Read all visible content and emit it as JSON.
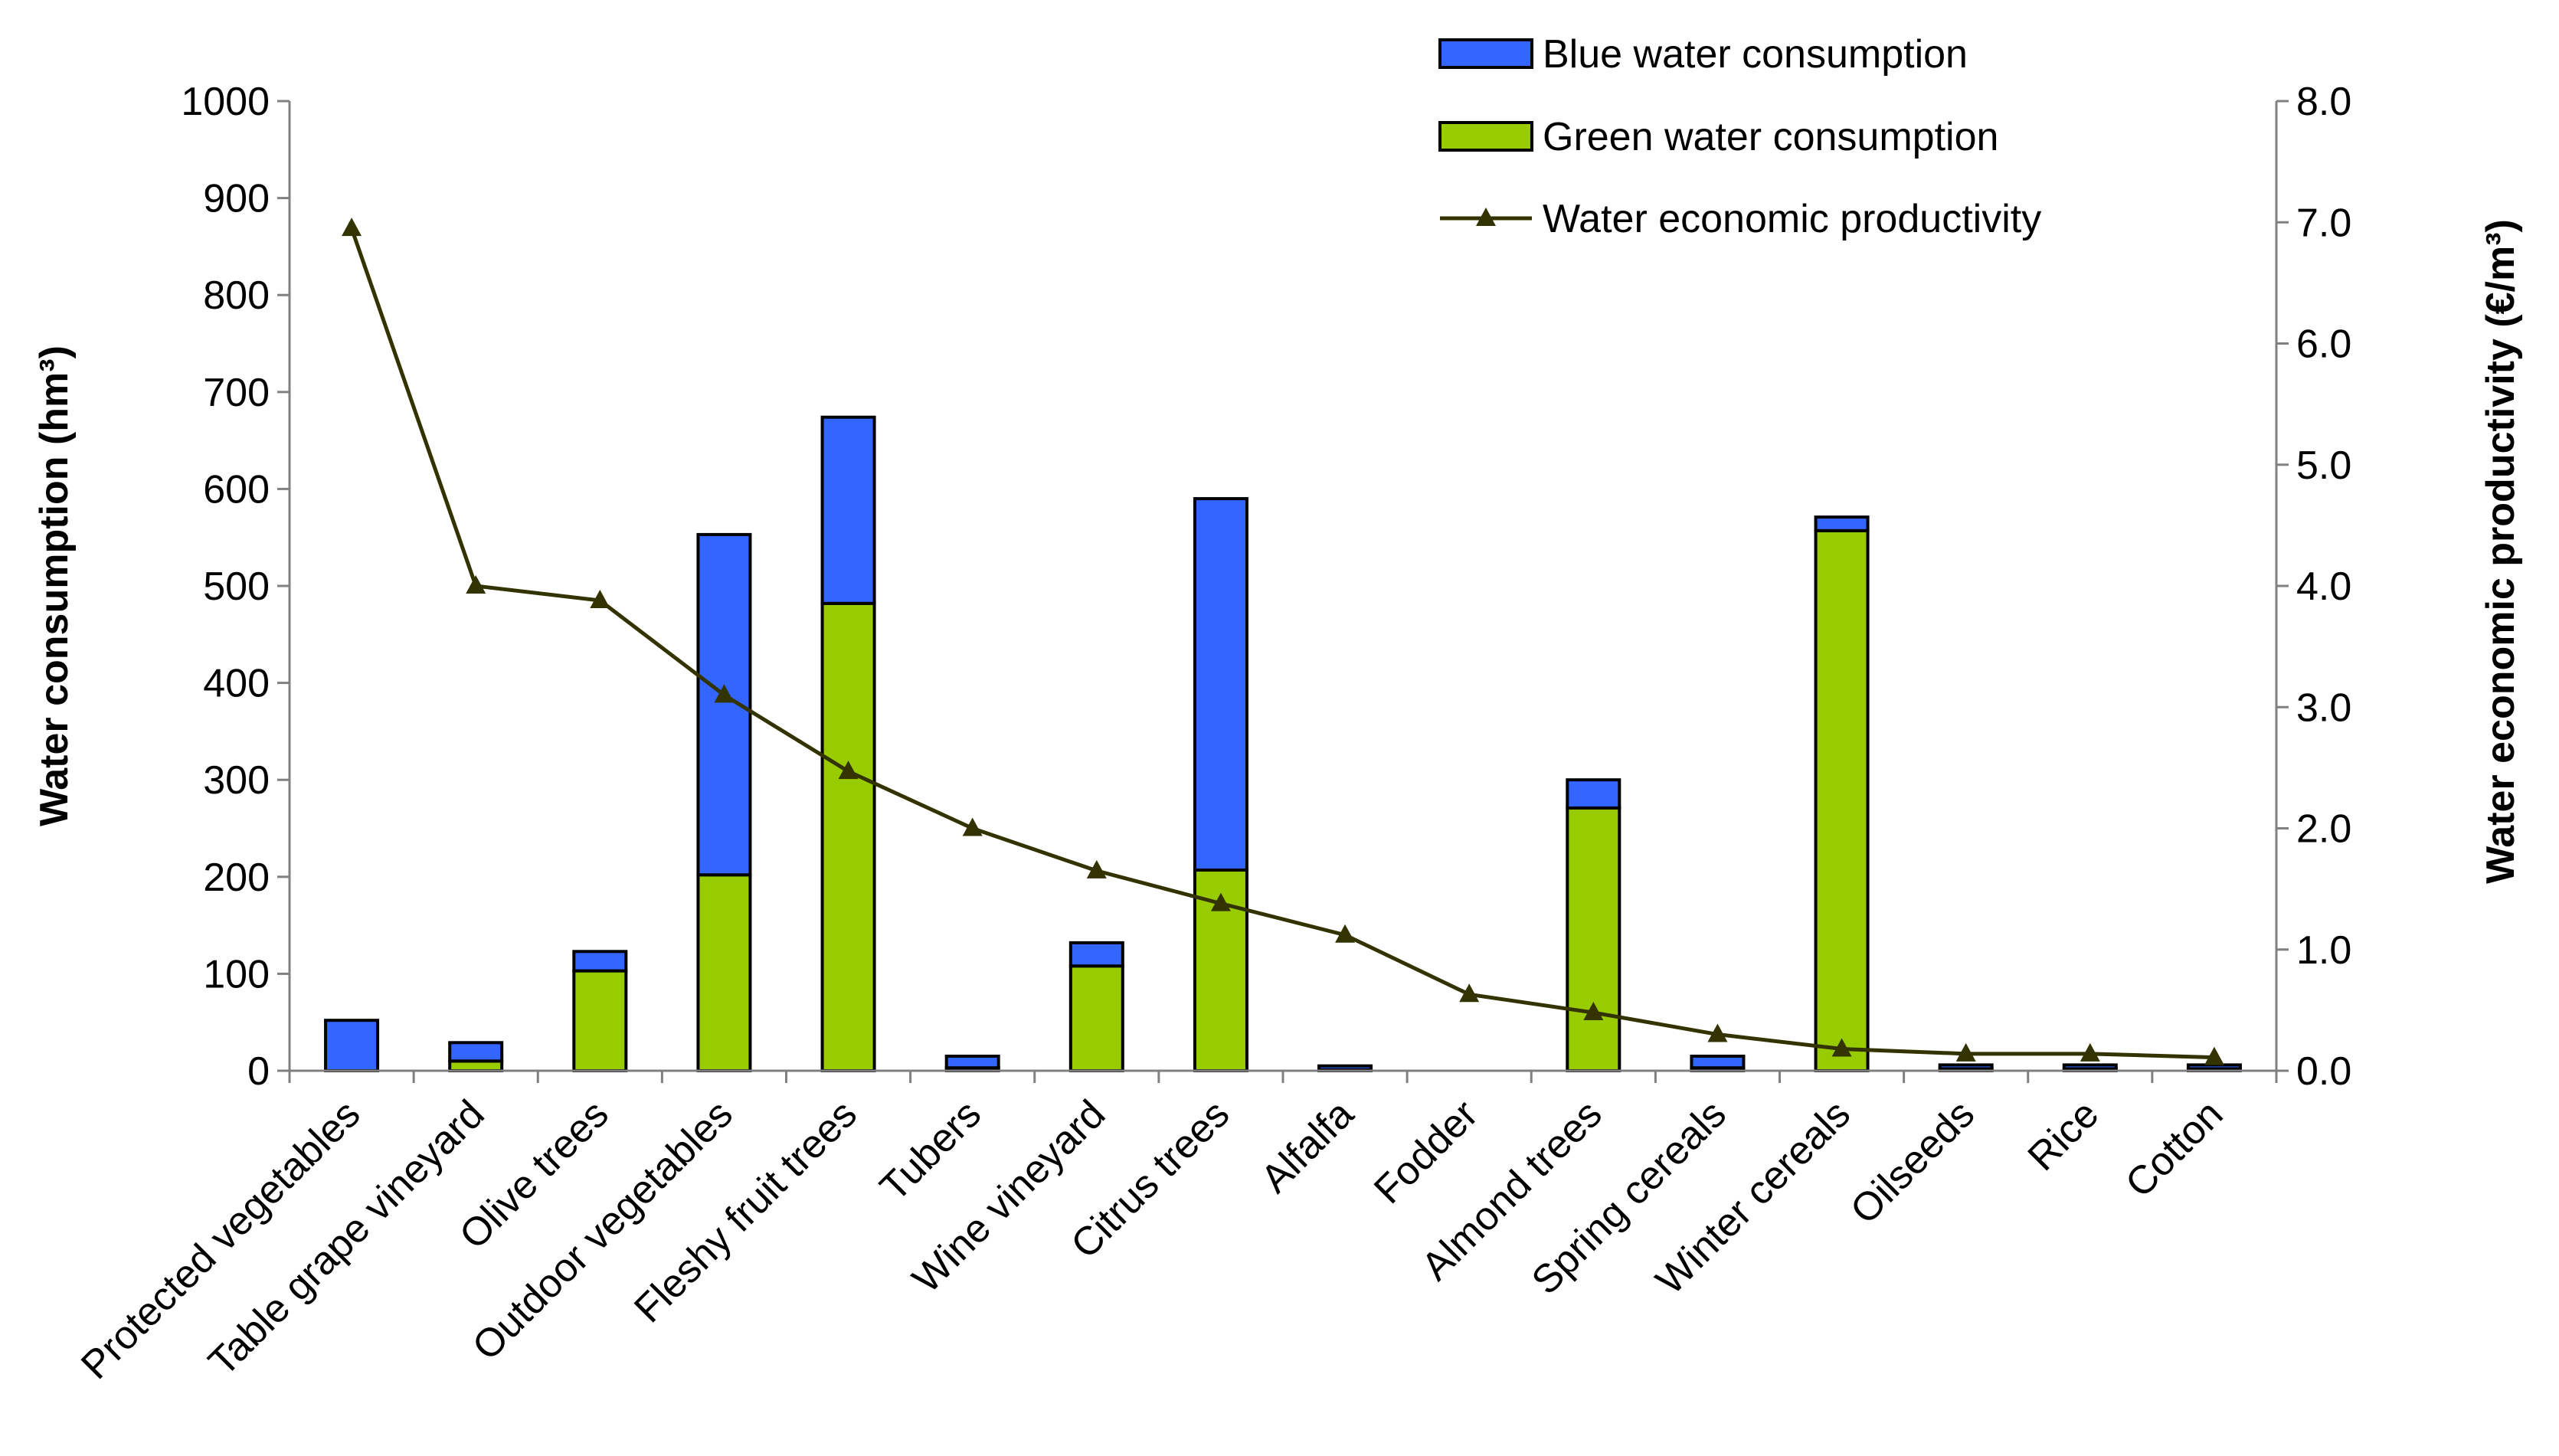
{
  "chart_data": {
    "type": "bar",
    "stacked": true,
    "categories": [
      "Protected vegetables",
      "Table grape vineyard",
      "Olive trees",
      "Outdoor vegetables",
      "Fleshy fruit trees",
      "Tubers",
      "Wine vineyard",
      "Citrus trees",
      "Alfalfa",
      "Fodder",
      "Almond trees",
      "Spring cereals",
      "Winter cereals",
      "Oilseeds",
      "Rice",
      "Cotton"
    ],
    "series": [
      {
        "name": "Green water consumption",
        "axis": "left",
        "color": "#99cc00",
        "values": [
          0,
          10,
          103,
          202,
          482,
          3,
          108,
          207,
          1,
          0,
          271,
          3,
          557,
          2,
          2,
          2
        ]
      },
      {
        "name": "Blue water consumption",
        "axis": "left",
        "color": "#3366ff",
        "values": [
          52,
          19,
          20,
          351,
          192,
          12,
          24,
          383,
          4,
          0,
          29,
          12,
          14,
          4,
          4,
          4
        ]
      },
      {
        "name": "Water economic productivity",
        "axis": "right",
        "type": "line",
        "color": "#333300",
        "values": [
          6.95,
          4.0,
          3.88,
          3.1,
          2.47,
          2.0,
          1.65,
          1.38,
          1.12,
          0.63,
          0.48,
          0.3,
          0.18,
          0.14,
          0.14,
          0.11
        ]
      }
    ],
    "ylabel": "Water consumption (hm³)",
    "ylim": [
      0,
      1000
    ],
    "yticks": [
      "0",
      "100",
      "200",
      "300",
      "400",
      "500",
      "600",
      "700",
      "800",
      "900",
      "1000"
    ],
    "y2label": "Water economic productivity (€/m³)",
    "y2lim": [
      0,
      8
    ],
    "y2ticks": [
      "0.0",
      "1.0",
      "2.0",
      "3.0",
      "4.0",
      "5.0",
      "6.0",
      "7.0",
      "8.0"
    ],
    "legend": {
      "position": "top-right",
      "items": [
        "Blue water consumption",
        "Green water consumption",
        "Water economic productivity"
      ]
    },
    "grid": false
  }
}
